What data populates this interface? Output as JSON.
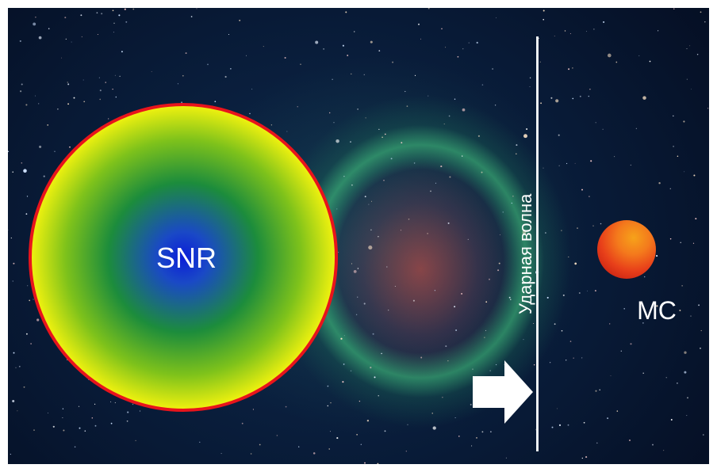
{
  "diagram": {
    "snr_label": "SNR",
    "shock_wave_label": "Ударная волна",
    "mc_label": "MC",
    "colors": {
      "snr_center": "#0b1ed8",
      "snr_mid": "#1c8c3c",
      "snr_yellow": "#f6f40e",
      "snr_edge": "#f27614",
      "snr_border": "#e8141c",
      "shock_line": "#eef2f6",
      "mc_sphere": "#e8401a",
      "background": "#081a36"
    },
    "icons": {
      "shock_direction": "arrow-right-icon"
    }
  }
}
